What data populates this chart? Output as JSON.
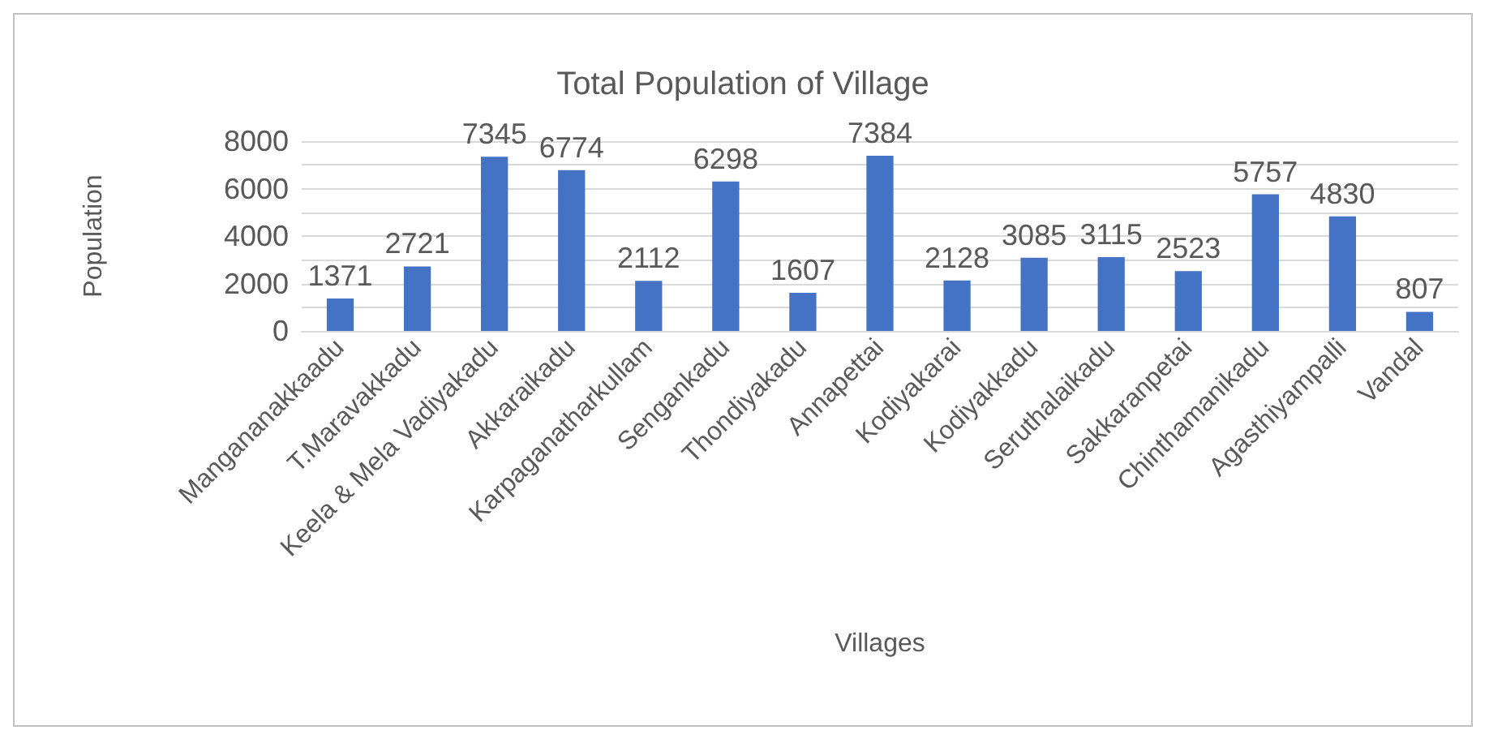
{
  "chart_data": {
    "type": "bar",
    "title": "Total Population of Village",
    "xlabel": "Villages",
    "ylabel": "Population",
    "categories": [
      "Mangananakkaadu",
      "T.Maravakkadu",
      "Keela & Mela Vadiyakadu",
      "Akkaraikadu",
      "Karpaganatharkullam",
      "Sengankadu",
      "Thondiyakadu",
      "Annapettai",
      "Kodiyakarai",
      "Kodiyakkadu",
      "Seruthalaikadu",
      "Sakkaranpetai",
      "Chinthamanikadu",
      "Agasthiyampalli",
      "Vandal"
    ],
    "values": [
      1371,
      2721,
      7345,
      6774,
      2112,
      6298,
      1607,
      7384,
      2128,
      3085,
      3115,
      2523,
      5757,
      4830,
      807
    ],
    "color": "#4472c4",
    "ylim": [
      0,
      8000
    ],
    "yticks": [
      0,
      {
        "value": 1000,
        "label": null
      },
      2000,
      {
        "value": 3000,
        "label": null
      },
      4000,
      {
        "value": 5000,
        "label": null
      },
      6000,
      {
        "value": 7000,
        "label": null
      },
      8000
    ],
    "grid": "y",
    "data_labels": true
  }
}
